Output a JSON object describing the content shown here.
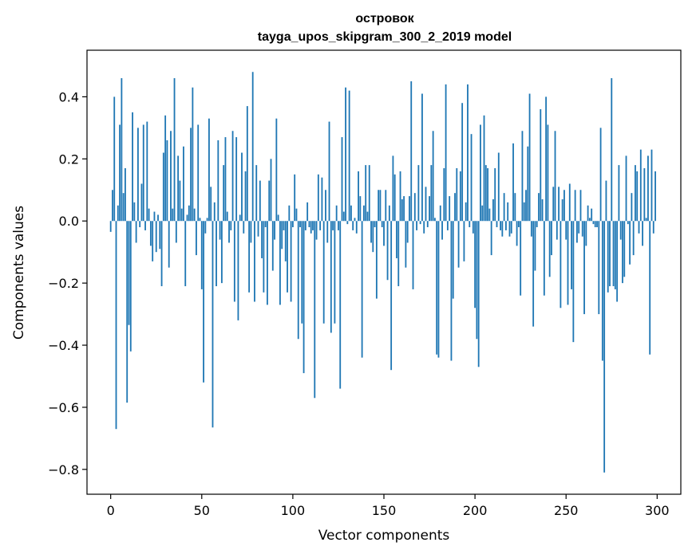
{
  "chart_data": {
    "type": "bar",
    "title_line1": "островок",
    "title_line2": "tayga_upos_skipgram_300_2_2019 model",
    "xlabel": "Vector components",
    "ylabel": "Components values",
    "xlim": [
      -13,
      313
    ],
    "ylim": [
      -0.88,
      0.55
    ],
    "xticks": [
      0,
      50,
      100,
      150,
      200,
      250,
      300
    ],
    "xtick_labels": [
      "0",
      "50",
      "100",
      "150",
      "200",
      "250",
      "300"
    ],
    "yticks": [
      -0.8,
      -0.6,
      -0.4,
      -0.2,
      0.0,
      0.2,
      0.4
    ],
    "ytick_labels": [
      "−0.8",
      "−0.6",
      "−0.4",
      "−0.2",
      "0.0",
      "0.2",
      "0.4"
    ],
    "bar_color": "#1f77b4",
    "grid": false,
    "legend": "none",
    "x": [
      0,
      1,
      2,
      3,
      4,
      5,
      6,
      7,
      8,
      9,
      10,
      11,
      12,
      13,
      14,
      15,
      16,
      17,
      18,
      19,
      20,
      21,
      22,
      23,
      24,
      25,
      26,
      27,
      28,
      29,
      30,
      31,
      32,
      33,
      34,
      35,
      36,
      37,
      38,
      39,
      40,
      41,
      42,
      43,
      44,
      45,
      46,
      47,
      48,
      49,
      50,
      51,
      52,
      53,
      54,
      55,
      56,
      57,
      58,
      59,
      60,
      61,
      62,
      63,
      64,
      65,
      66,
      67,
      68,
      69,
      70,
      71,
      72,
      73,
      74,
      75,
      76,
      77,
      78,
      79,
      80,
      81,
      82,
      83,
      84,
      85,
      86,
      87,
      88,
      89,
      90,
      91,
      92,
      93,
      94,
      95,
      96,
      97,
      98,
      99,
      100,
      101,
      102,
      103,
      104,
      105,
      106,
      107,
      108,
      109,
      110,
      111,
      112,
      113,
      114,
      115,
      116,
      117,
      118,
      119,
      120,
      121,
      122,
      123,
      124,
      125,
      126,
      127,
      128,
      129,
      130,
      131,
      132,
      133,
      134,
      135,
      136,
      137,
      138,
      139,
      140,
      141,
      142,
      143,
      144,
      145,
      146,
      147,
      148,
      149,
      150,
      151,
      152,
      153,
      154,
      155,
      156,
      157,
      158,
      159,
      160,
      161,
      162,
      163,
      164,
      165,
      166,
      167,
      168,
      169,
      170,
      171,
      172,
      173,
      174,
      175,
      176,
      177,
      178,
      179,
      180,
      181,
      182,
      183,
      184,
      185,
      186,
      187,
      188,
      189,
      190,
      191,
      192,
      193,
      194,
      195,
      196,
      197,
      198,
      199,
      200,
      201,
      202,
      203,
      204,
      205,
      206,
      207,
      208,
      209,
      210,
      211,
      212,
      213,
      214,
      215,
      216,
      217,
      218,
      219,
      220,
      221,
      222,
      223,
      224,
      225,
      226,
      227,
      228,
      229,
      230,
      231,
      232,
      233,
      234,
      235,
      236,
      237,
      238,
      239,
      240,
      241,
      242,
      243,
      244,
      245,
      246,
      247,
      248,
      249,
      250,
      251,
      252,
      253,
      254,
      255,
      256,
      257,
      258,
      259,
      260,
      261,
      262,
      263,
      264,
      265,
      266,
      267,
      268,
      269,
      270,
      271,
      272,
      273,
      274,
      275,
      276,
      277,
      278,
      279,
      280,
      281,
      282,
      283,
      284,
      285,
      286,
      287,
      288,
      289,
      290,
      291,
      292,
      293,
      294,
      295,
      296,
      297,
      298,
      299
    ],
    "values": [
      -0.035,
      0.1,
      0.4,
      -0.67,
      0.05,
      0.31,
      0.46,
      0.09,
      0.17,
      -0.585,
      -0.335,
      -0.42,
      0.35,
      0.06,
      -0.07,
      0.3,
      -0.02,
      0.12,
      0.31,
      -0.03,
      0.32,
      0.04,
      -0.08,
      -0.13,
      0.03,
      -0.1,
      0.02,
      -0.09,
      -0.21,
      0.22,
      0.34,
      0.26,
      -0.15,
      0.29,
      0.04,
      0.46,
      -0.07,
      0.21,
      0.13,
      0.04,
      0.24,
      -0.21,
      0.02,
      0.05,
      0.3,
      0.43,
      0.04,
      -0.11,
      0.31,
      0.01,
      -0.22,
      -0.52,
      -0.04,
      0.01,
      0.33,
      0.11,
      -0.665,
      0.06,
      -0.21,
      0.26,
      -0.06,
      -0.2,
      0.18,
      0.27,
      0.03,
      -0.07,
      -0.03,
      0.29,
      -0.26,
      0.27,
      -0.32,
      0.02,
      0.22,
      -0.04,
      0.16,
      0.37,
      -0.23,
      -0.07,
      0.48,
      -0.26,
      0.18,
      -0.05,
      0.13,
      -0.12,
      -0.23,
      -0.02,
      -0.27,
      0.13,
      0.2,
      -0.16,
      -0.06,
      0.33,
      0.02,
      -0.27,
      -0.09,
      -0.03,
      -0.13,
      -0.23,
      0.05,
      -0.26,
      -0.02,
      0.15,
      0.04,
      -0.38,
      -0.02,
      -0.33,
      -0.49,
      -0.03,
      0.06,
      -0.02,
      -0.04,
      -0.03,
      -0.57,
      -0.06,
      0.15,
      -0.03,
      0.14,
      -0.33,
      0.1,
      -0.07,
      0.32,
      -0.36,
      -0.03,
      -0.33,
      0.05,
      -0.03,
      -0.54,
      0.27,
      0.03,
      0.43,
      -0.01,
      0.42,
      0.05,
      -0.03,
      0.01,
      -0.04,
      0.16,
      0.08,
      -0.44,
      0.05,
      0.18,
      0.03,
      0.18,
      -0.07,
      -0.1,
      -0.02,
      -0.25,
      0.1,
      0.1,
      -0.02,
      -0.08,
      0.1,
      -0.19,
      0.05,
      -0.48,
      0.21,
      0.15,
      -0.12,
      -0.21,
      0.16,
      0.07,
      0.08,
      -0.15,
      -0.07,
      0.08,
      0.45,
      -0.22,
      0.09,
      -0.03,
      0.18,
      -0.01,
      0.41,
      -0.04,
      0.11,
      -0.02,
      0.08,
      0.18,
      0.29,
      0.01,
      -0.43,
      -0.44,
      0.05,
      -0.06,
      0.17,
      0.44,
      -0.03,
      0.08,
      -0.45,
      -0.25,
      0.09,
      0.17,
      -0.15,
      0.16,
      0.38,
      -0.13,
      0.06,
      0.44,
      -0.02,
      0.28,
      -0.04,
      -0.28,
      -0.38,
      -0.47,
      0.31,
      0.05,
      0.34,
      0.18,
      0.17,
      0.04,
      -0.11,
      0.07,
      0.17,
      -0.02,
      0.22,
      -0.03,
      -0.05,
      0.09,
      -0.03,
      0.06,
      -0.05,
      -0.04,
      0.25,
      0.09,
      -0.08,
      -0.02,
      -0.24,
      0.29,
      0.06,
      0.1,
      0.24,
      0.41,
      -0.05,
      -0.34,
      -0.16,
      -0.02,
      0.09,
      0.36,
      0.07,
      -0.24,
      0.4,
      0.31,
      -0.18,
      -0.11,
      0.11,
      0.29,
      -0.06,
      0.11,
      -0.28,
      0.07,
      0.1,
      -0.06,
      -0.27,
      0.12,
      -0.22,
      -0.39,
      0.1,
      -0.07,
      -0.04,
      0.1,
      -0.05,
      -0.3,
      -0.08,
      0.05,
      0.01,
      0.04,
      -0.01,
      -0.02,
      -0.02,
      -0.3,
      0.3,
      -0.45,
      -0.81,
      0.13,
      -0.23,
      -0.21,
      0.46,
      -0.21,
      -0.22,
      -0.26,
      0.18,
      -0.06,
      -0.2,
      -0.18,
      0.21,
      -0.01,
      -0.14,
      0.09,
      -0.11,
      0.18,
      0.16,
      -0.04,
      0.23,
      -0.08,
      0.17,
      0.01,
      0.21,
      -0.43,
      0.23,
      -0.04,
      0.16
    ]
  }
}
